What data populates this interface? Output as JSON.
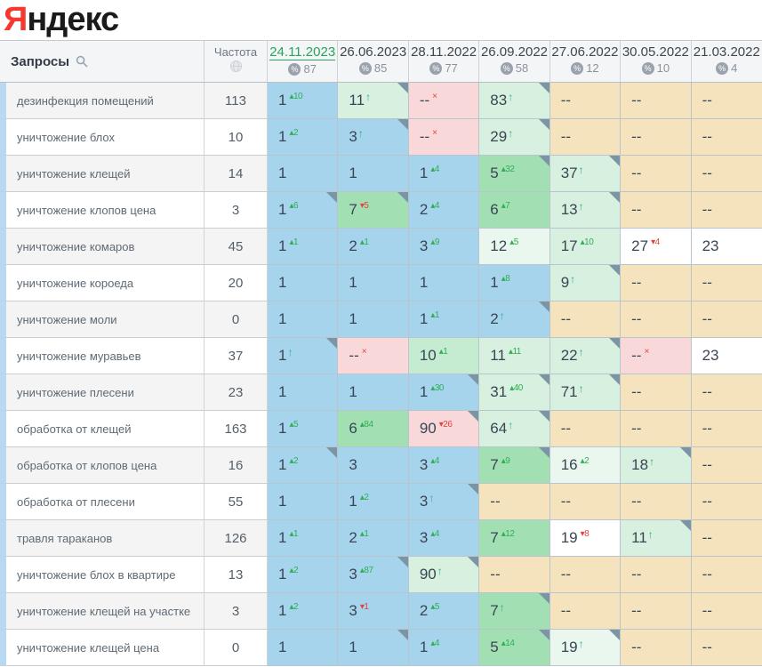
{
  "logo": {
    "ya": "Я",
    "ndex": "ндекс"
  },
  "header": {
    "queries_label": "Запросы",
    "frequency_label": "Частота",
    "columns": [
      {
        "date": "24.11.2023",
        "top_count": "87",
        "active": true
      },
      {
        "date": "26.06.2023",
        "top_count": "85",
        "active": false
      },
      {
        "date": "28.11.2022",
        "top_count": "77",
        "active": false
      },
      {
        "date": "26.09.2022",
        "top_count": "58",
        "active": false
      },
      {
        "date": "27.06.2022",
        "top_count": "12",
        "active": false
      },
      {
        "date": "30.05.2022",
        "top_count": "10",
        "active": false
      },
      {
        "date": "21.03.2022",
        "top_count": "4",
        "active": false
      }
    ]
  },
  "colors": {
    "top3_blue": "#a6d4ec",
    "green_medium": "#a2e0b4",
    "green_mid": "#c5ebd1",
    "green_light": "#d8f0e0",
    "green_pale": "#eaf7ee",
    "dropped_pink": "#f9d8da",
    "absent_tan": "#f4e3bd",
    "active_date_green": "#27a35c",
    "change_up_green": "#2fae54",
    "change_down_red": "#e0443a",
    "logo_red": "#f5392e",
    "row_strip_blue": "#b7daf2",
    "corner_marker": "#7b95a5"
  },
  "rows": [
    {
      "query": "дезинфекция помещений",
      "frequency": "113",
      "cells": [
        {
          "v": "1",
          "sup": "10",
          "dir": "up",
          "bg": "blue"
        },
        {
          "v": "11",
          "arrow": true,
          "bg": "glight",
          "corner": true
        },
        {
          "v": "--",
          "x": true,
          "bg": "pink"
        },
        {
          "v": "83",
          "arrow": true,
          "bg": "glight",
          "corner": true
        },
        {
          "v": "--",
          "bg": "tan"
        },
        {
          "v": "--",
          "bg": "tan"
        },
        {
          "v": "--",
          "bg": "tan"
        }
      ]
    },
    {
      "query": "уничтожение блох",
      "frequency": "10",
      "cells": [
        {
          "v": "1",
          "sup": "2",
          "dir": "up",
          "bg": "blue"
        },
        {
          "v": "3",
          "arrow": true,
          "bg": "blue",
          "corner": true
        },
        {
          "v": "--",
          "x": true,
          "bg": "pink"
        },
        {
          "v": "29",
          "arrow": true,
          "bg": "glight",
          "corner": true
        },
        {
          "v": "--",
          "bg": "tan"
        },
        {
          "v": "--",
          "bg": "tan"
        },
        {
          "v": "--",
          "bg": "tan"
        }
      ]
    },
    {
      "query": "уничтожение клещей",
      "frequency": "14",
      "cells": [
        {
          "v": "1",
          "bg": "blue"
        },
        {
          "v": "1",
          "bg": "blue"
        },
        {
          "v": "1",
          "sup": "4",
          "dir": "up",
          "bg": "blue"
        },
        {
          "v": "5",
          "sup": "32",
          "dir": "up",
          "bg": "gmed",
          "corner": true
        },
        {
          "v": "37",
          "arrow": true,
          "bg": "glight",
          "corner": true
        },
        {
          "v": "--",
          "bg": "tan"
        },
        {
          "v": "--",
          "bg": "tan"
        }
      ]
    },
    {
      "query": "уничтожение клопов цена",
      "frequency": "3",
      "cells": [
        {
          "v": "1",
          "sup": "6",
          "dir": "up",
          "bg": "blue",
          "corner": true
        },
        {
          "v": "7",
          "sup": "5",
          "dir": "down",
          "bg": "gmed",
          "corner": true
        },
        {
          "v": "2",
          "sup": "4",
          "dir": "up",
          "bg": "blue"
        },
        {
          "v": "6",
          "sup": "7",
          "dir": "up",
          "bg": "gmed"
        },
        {
          "v": "13",
          "arrow": true,
          "bg": "glight",
          "corner": true
        },
        {
          "v": "--",
          "bg": "tan"
        },
        {
          "v": "--",
          "bg": "tan"
        }
      ]
    },
    {
      "query": "уничтожение комаров",
      "frequency": "45",
      "cells": [
        {
          "v": "1",
          "sup": "1",
          "dir": "up",
          "bg": "blue"
        },
        {
          "v": "2",
          "sup": "1",
          "dir": "up",
          "bg": "blue"
        },
        {
          "v": "3",
          "sup": "9",
          "dir": "up",
          "bg": "blue"
        },
        {
          "v": "12",
          "sup": "5",
          "dir": "up",
          "bg": "gpale"
        },
        {
          "v": "17",
          "sup": "10",
          "dir": "up",
          "bg": "glight"
        },
        {
          "v": "27",
          "sup": "4",
          "dir": "down",
          "bg": "white"
        },
        {
          "v": "23",
          "bg": "white"
        }
      ]
    },
    {
      "query": "уничтожение короеда",
      "frequency": "20",
      "cells": [
        {
          "v": "1",
          "bg": "blue"
        },
        {
          "v": "1",
          "bg": "blue"
        },
        {
          "v": "1",
          "bg": "blue"
        },
        {
          "v": "1",
          "sup": "8",
          "dir": "up",
          "bg": "blue"
        },
        {
          "v": "9",
          "arrow": true,
          "bg": "glight",
          "corner": true
        },
        {
          "v": "--",
          "bg": "tan"
        },
        {
          "v": "--",
          "bg": "tan"
        }
      ]
    },
    {
      "query": "уничтожение моли",
      "frequency": "0",
      "cells": [
        {
          "v": "1",
          "bg": "blue"
        },
        {
          "v": "1",
          "bg": "blue"
        },
        {
          "v": "1",
          "sup": "1",
          "dir": "up",
          "bg": "blue"
        },
        {
          "v": "2",
          "arrow": true,
          "bg": "blue",
          "corner": true
        },
        {
          "v": "--",
          "bg": "tan"
        },
        {
          "v": "--",
          "bg": "tan"
        },
        {
          "v": "--",
          "bg": "tan"
        }
      ]
    },
    {
      "query": "уничтожение муравьев",
      "frequency": "37",
      "cells": [
        {
          "v": "1",
          "arrow": true,
          "bg": "blue",
          "corner": true
        },
        {
          "v": "--",
          "x": true,
          "bg": "pink"
        },
        {
          "v": "10",
          "sup": "1",
          "dir": "up",
          "bg": "gmid"
        },
        {
          "v": "11",
          "sup": "11",
          "dir": "up",
          "bg": "glight"
        },
        {
          "v": "22",
          "arrow": true,
          "bg": "glight",
          "corner": true
        },
        {
          "v": "--",
          "x": true,
          "bg": "pink"
        },
        {
          "v": "23",
          "bg": "white"
        }
      ]
    },
    {
      "query": "уничтожение плесени",
      "frequency": "23",
      "cells": [
        {
          "v": "1",
          "bg": "blue"
        },
        {
          "v": "1",
          "bg": "blue"
        },
        {
          "v": "1",
          "sup": "30",
          "dir": "up",
          "bg": "blue",
          "corner": true
        },
        {
          "v": "31",
          "sup": "40",
          "dir": "up",
          "bg": "glight",
          "corner": true
        },
        {
          "v": "71",
          "arrow": true,
          "bg": "glight",
          "corner": true
        },
        {
          "v": "--",
          "bg": "tan"
        },
        {
          "v": "--",
          "bg": "tan"
        }
      ]
    },
    {
      "query": "обработка от клещей",
      "frequency": "163",
      "cells": [
        {
          "v": "1",
          "sup": "5",
          "dir": "up",
          "bg": "blue"
        },
        {
          "v": "6",
          "sup": "84",
          "dir": "up",
          "bg": "gmed"
        },
        {
          "v": "90",
          "sup": "26",
          "dir": "down",
          "bg": "pink",
          "corner": true
        },
        {
          "v": "64",
          "arrow": true,
          "bg": "glight",
          "corner": true
        },
        {
          "v": "--",
          "bg": "tan"
        },
        {
          "v": "--",
          "bg": "tan"
        },
        {
          "v": "--",
          "bg": "tan"
        }
      ]
    },
    {
      "query": "обработка от клопов цена",
      "frequency": "16",
      "cells": [
        {
          "v": "1",
          "sup": "2",
          "dir": "up",
          "bg": "blue",
          "corner": true
        },
        {
          "v": "3",
          "bg": "blue"
        },
        {
          "v": "3",
          "sup": "4",
          "dir": "up",
          "bg": "blue"
        },
        {
          "v": "7",
          "sup": "9",
          "dir": "up",
          "bg": "gmed",
          "corner": true
        },
        {
          "v": "16",
          "sup": "2",
          "dir": "up",
          "bg": "gpale"
        },
        {
          "v": "18",
          "arrow": true,
          "bg": "glight",
          "corner": true
        },
        {
          "v": "--",
          "bg": "tan"
        }
      ]
    },
    {
      "query": "обработка от плесени",
      "frequency": "55",
      "cells": [
        {
          "v": "1",
          "bg": "blue"
        },
        {
          "v": "1",
          "sup": "2",
          "dir": "up",
          "bg": "blue"
        },
        {
          "v": "3",
          "arrow": true,
          "bg": "blue",
          "corner": true
        },
        {
          "v": "--",
          "bg": "tan"
        },
        {
          "v": "--",
          "bg": "tan"
        },
        {
          "v": "--",
          "bg": "tan"
        },
        {
          "v": "--",
          "bg": "tan"
        }
      ]
    },
    {
      "query": "травля тараканов",
      "frequency": "126",
      "cells": [
        {
          "v": "1",
          "sup": "1",
          "dir": "up",
          "bg": "blue"
        },
        {
          "v": "2",
          "sup": "1",
          "dir": "up",
          "bg": "blue"
        },
        {
          "v": "3",
          "sup": "4",
          "dir": "up",
          "bg": "blue"
        },
        {
          "v": "7",
          "sup": "12",
          "dir": "up",
          "bg": "gmed"
        },
        {
          "v": "19",
          "sup": "8",
          "dir": "down",
          "bg": "white"
        },
        {
          "v": "11",
          "arrow": true,
          "bg": "glight",
          "corner": true
        },
        {
          "v": "--",
          "bg": "tan"
        }
      ]
    },
    {
      "query": "уничтожение блох в квартире",
      "frequency": "13",
      "cells": [
        {
          "v": "1",
          "sup": "2",
          "dir": "up",
          "bg": "blue"
        },
        {
          "v": "3",
          "sup": "87",
          "dir": "up",
          "bg": "blue",
          "corner": true
        },
        {
          "v": "90",
          "arrow": true,
          "bg": "glight",
          "corner": true
        },
        {
          "v": "--",
          "bg": "tan"
        },
        {
          "v": "--",
          "bg": "tan"
        },
        {
          "v": "--",
          "bg": "tan"
        },
        {
          "v": "--",
          "bg": "tan"
        }
      ]
    },
    {
      "query": "уничтожение клещей на участке",
      "frequency": "3",
      "cells": [
        {
          "v": "1",
          "sup": "2",
          "dir": "up",
          "bg": "blue"
        },
        {
          "v": "3",
          "sup": "1",
          "dir": "down",
          "bg": "blue"
        },
        {
          "v": "2",
          "sup": "5",
          "dir": "up",
          "bg": "blue"
        },
        {
          "v": "7",
          "arrow": true,
          "bg": "gmed",
          "corner": true
        },
        {
          "v": "--",
          "bg": "tan"
        },
        {
          "v": "--",
          "bg": "tan"
        },
        {
          "v": "--",
          "bg": "tan"
        }
      ]
    },
    {
      "query": "уничтожение клещей цена",
      "frequency": "0",
      "cells": [
        {
          "v": "1",
          "bg": "blue"
        },
        {
          "v": "1",
          "bg": "blue",
          "corner": true
        },
        {
          "v": "1",
          "sup": "4",
          "dir": "up",
          "bg": "blue"
        },
        {
          "v": "5",
          "sup": "14",
          "dir": "up",
          "bg": "gmed",
          "corner": true
        },
        {
          "v": "19",
          "arrow": true,
          "bg": "gpale",
          "corner": true
        },
        {
          "v": "--",
          "bg": "tan"
        },
        {
          "v": "--",
          "bg": "tan"
        }
      ]
    }
  ]
}
